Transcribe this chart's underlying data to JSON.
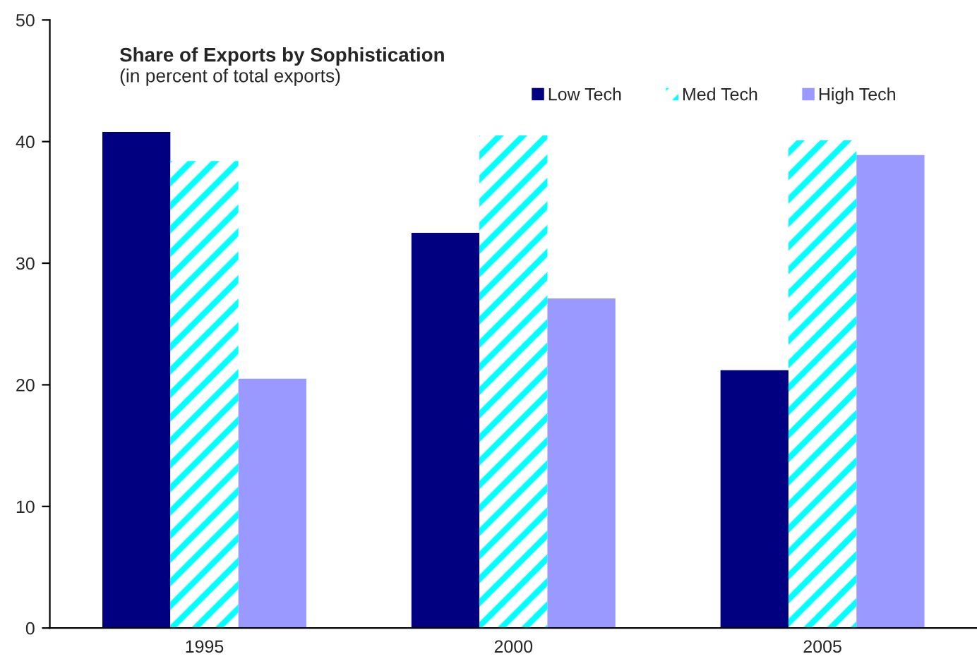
{
  "chart_data": {
    "type": "bar",
    "title": "Share of Exports by Sophistication",
    "subtitle": "(in percent of total exports)",
    "categories": [
      "1995",
      "2000",
      "2005"
    ],
    "series": [
      {
        "name": "Low Tech",
        "color": "#000080",
        "values": [
          40.8,
          32.5,
          21.2
        ]
      },
      {
        "name": "Med Tech",
        "color": "#00ffff",
        "values": [
          38.4,
          40.5,
          40.1
        ]
      },
      {
        "name": "High Tech",
        "color": "#9999ff",
        "values": [
          20.5,
          27.1,
          38.9
        ]
      }
    ],
    "ylim": [
      0,
      50
    ],
    "yticks": [
      0,
      10,
      20,
      30,
      40,
      50
    ],
    "grid": false,
    "legend": "top right"
  }
}
